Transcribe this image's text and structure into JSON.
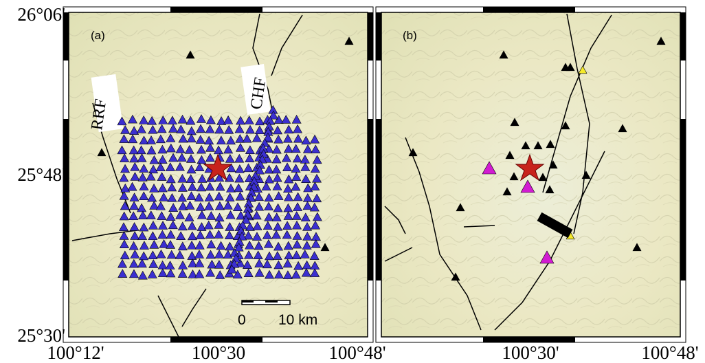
{
  "panels": [
    {
      "label": "(a)",
      "faults": [
        "RRF",
        "CHF"
      ],
      "scale_bar": {
        "start": "0",
        "end": "10 km"
      }
    },
    {
      "label": "(b)"
    }
  ],
  "axes": {
    "lat_labels": [
      "26°06'",
      "25°48'",
      "25°30'"
    ],
    "lon_labels": [
      "100°12'",
      "100°30",
      "100°48'",
      "100°30'",
      "100°48'"
    ]
  }
}
